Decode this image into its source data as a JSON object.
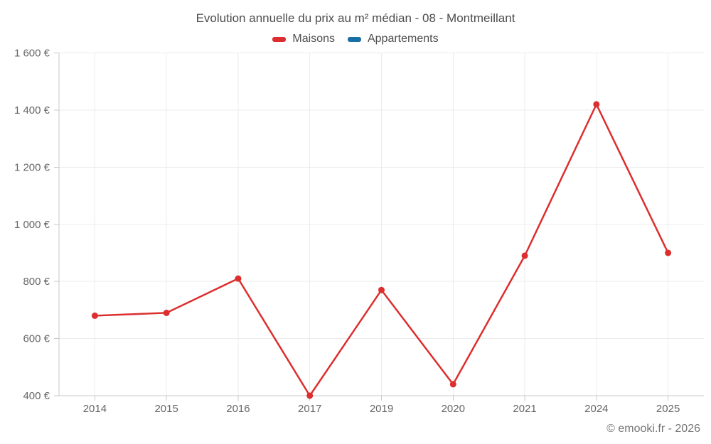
{
  "chart_data": {
    "type": "line",
    "title": "Evolution annuelle du prix au m² médian - 08 - Montmeillant",
    "categories": [
      "2014",
      "2015",
      "2016",
      "2017",
      "2019",
      "2020",
      "2021",
      "2024",
      "2025"
    ],
    "series": [
      {
        "name": "Maisons",
        "color": "#dc2e2e",
        "values": [
          680,
          690,
          810,
          400,
          770,
          440,
          890,
          1420,
          900
        ]
      },
      {
        "name": "Appartements",
        "color": "#1a6fa5",
        "values": []
      }
    ],
    "ylim": [
      400,
      1600
    ],
    "ytick_step": 200,
    "y_suffix": " €",
    "grid": true,
    "legend_position": "top"
  },
  "footer": {
    "credit": "© emooki.fr - 2026"
  },
  "colors": {
    "title_text": "#4d4d4d",
    "axis_text": "#666666",
    "grid": "#ececec",
    "axis_line": "#c9c9c9",
    "footer_text": "#757575",
    "background": "#ffffff"
  }
}
